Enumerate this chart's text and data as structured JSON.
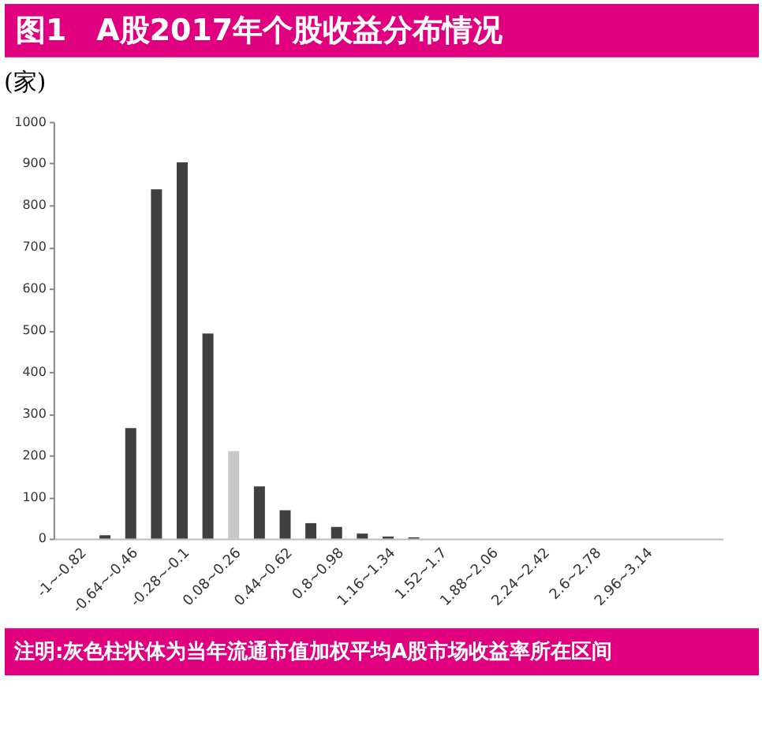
{
  "chart_data": {
    "type": "bar",
    "title": "图1　A股2017年个股收益分布情况",
    "ylabel": "(家)",
    "categories": [
      "-1~-0.82",
      null,
      "-0.64~-0.46",
      null,
      "-0.28~-0.1",
      null,
      "0.08~0.26",
      null,
      "0.44~0.62",
      null,
      "0.8~0.98",
      null,
      "1.16~1.34",
      null,
      "1.52~1.7",
      null,
      "1.88~2.06",
      null,
      "2.24~2.42",
      null,
      "2.6~2.78",
      null,
      "2.96~3.14",
      null,
      null
    ],
    "values": [
      0,
      8,
      265,
      838,
      903,
      492,
      210,
      125,
      68,
      37,
      28,
      12,
      5,
      3,
      0,
      0,
      0,
      0,
      0,
      0,
      0,
      0,
      0,
      0,
      0
    ],
    "colors": [
      "#404040",
      "#404040",
      "#404040",
      "#404040",
      "#404040",
      "#404040",
      "#c8c8c8",
      "#404040",
      "#404040",
      "#404040",
      "#404040",
      "#404040",
      "#404040",
      "#404040",
      "#404040",
      "#404040",
      "#404040",
      "#404040",
      "#404040",
      "#404040",
      "#404040",
      "#404040",
      "#404040",
      "#404040",
      "#404040"
    ],
    "ylim": [
      0,
      1000
    ],
    "yticks": [
      0,
      100,
      200,
      300,
      400,
      500,
      600,
      700,
      800,
      900,
      1000
    ],
    "grid": false,
    "annotations": [
      "注明:灰色柱状体为当年流通市值加权平均A股市场收益率所在区间"
    ]
  }
}
